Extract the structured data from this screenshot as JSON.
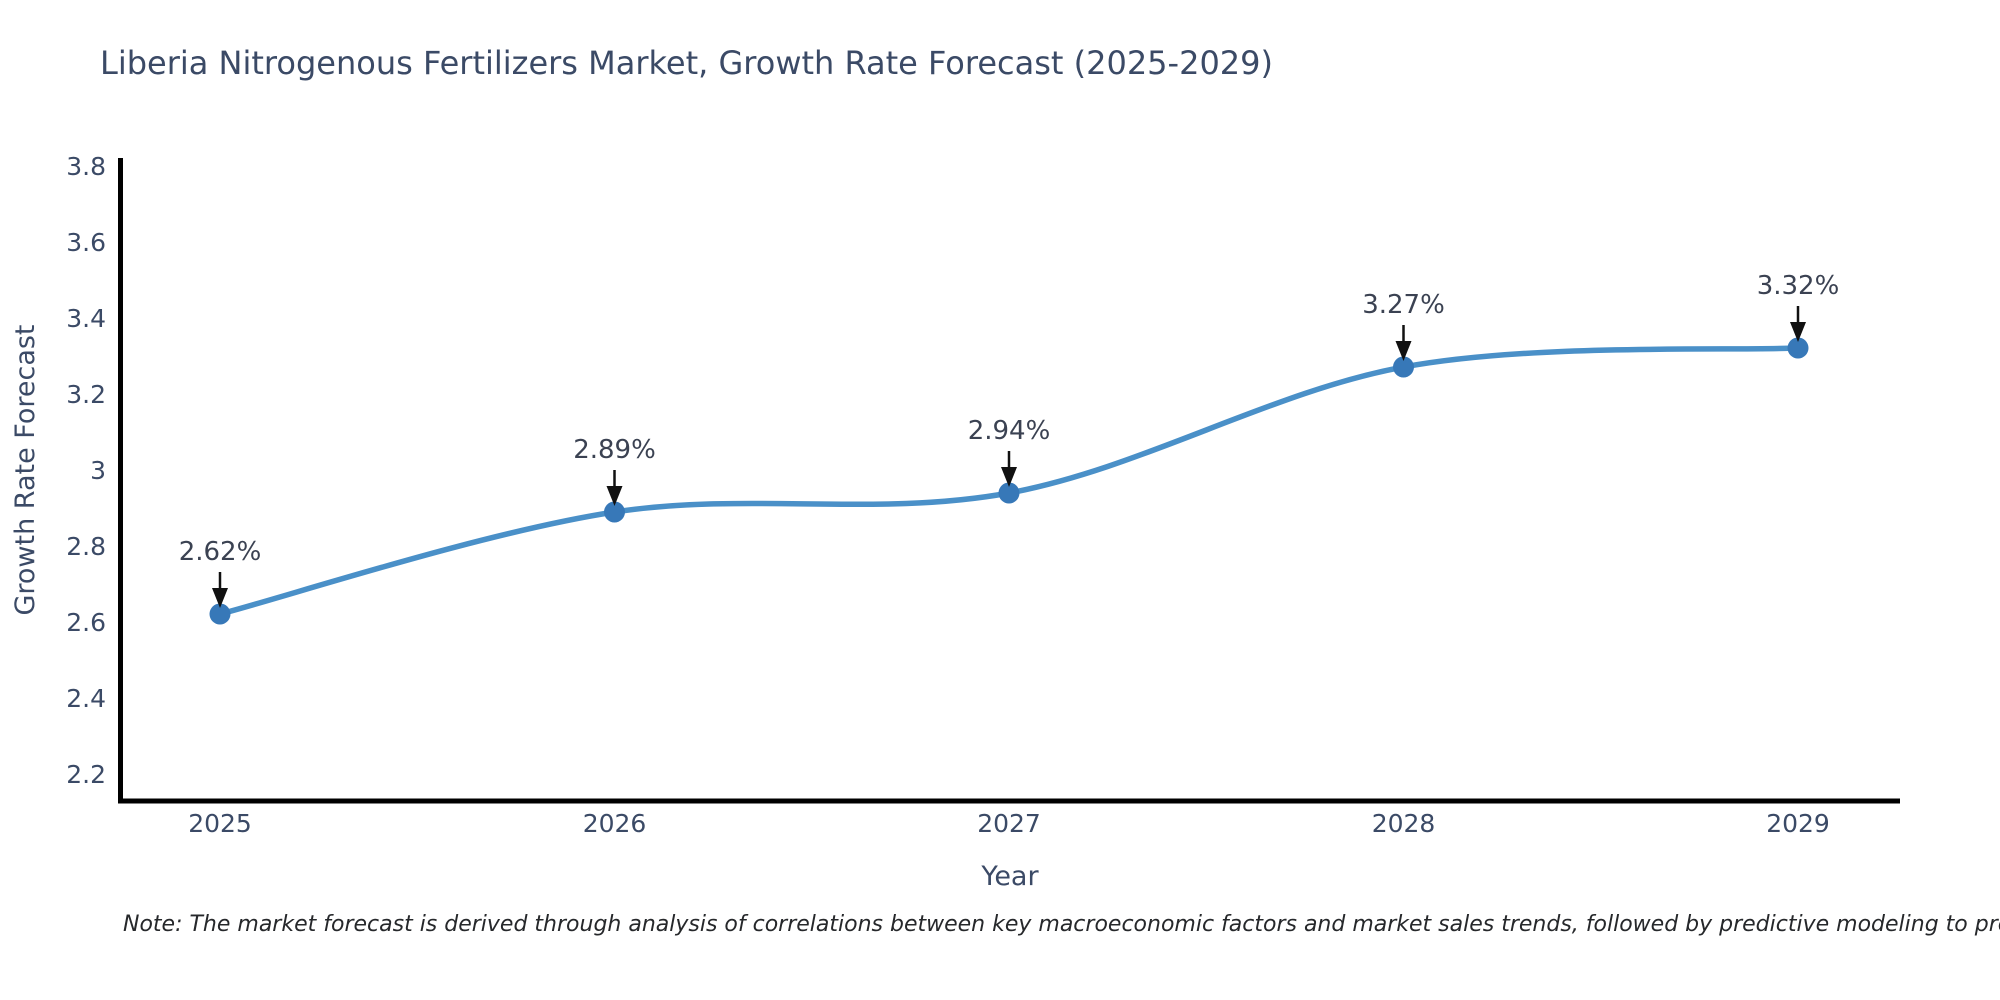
{
  "chart_data": {
    "type": "line",
    "line_shape": "spline",
    "title": "Liberia Nitrogenous Fertilizers Market, Growth Rate Forecast (2025-2029)",
    "xlabel": "Year",
    "ylabel": "Growth Rate Forecast",
    "categories": [
      "2025",
      "2026",
      "2027",
      "2028",
      "2029"
    ],
    "values": [
      2.62,
      2.89,
      2.94,
      3.27,
      3.32
    ],
    "point_labels": [
      "2.62%",
      "2.89%",
      "2.94%",
      "3.27%",
      "3.32%"
    ],
    "yticks": [
      "2.2",
      "2.4",
      "2.6",
      "2.8",
      "3",
      "3.2",
      "3.4",
      "3.6",
      "3.8"
    ],
    "ylim": [
      2.1,
      3.85
    ],
    "grid": false,
    "legend": "none",
    "colors": {
      "line": "#4a90c8",
      "marker": "#3778b8",
      "arrow": "#111111",
      "spine": "#000000",
      "text": "#3b4a66",
      "annotation_text": "#3b4252"
    },
    "note": "Note: The market forecast is derived through analysis of correlations between key macroeconomic factors and market sales trends, followed by predictive modeling to project future sales"
  }
}
